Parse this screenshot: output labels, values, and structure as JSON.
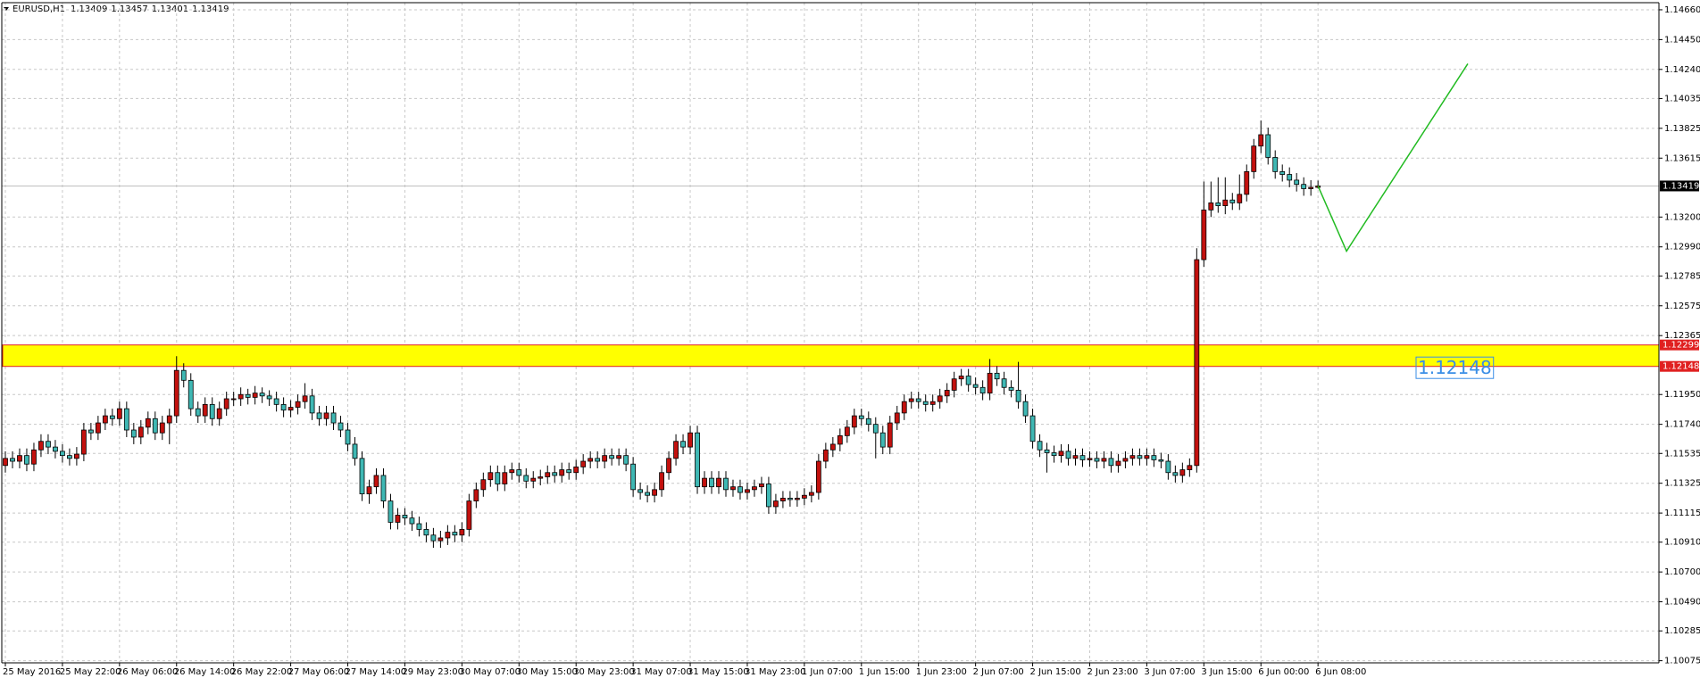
{
  "header": {
    "symbol": "EURUSD,H1"
  },
  "chart_data": {
    "type": "candlestick",
    "ylim": [
      1.1006,
      1.1471
    ],
    "yticks": [
      {
        "value": 1.1466,
        "label": "1.14660"
      },
      {
        "value": 1.1445,
        "label": "1.14450"
      },
      {
        "value": 1.1424,
        "label": "1.14240"
      },
      1.14035,
      1.13825,
      1.13615,
      {
        "value": 1.132,
        "label": "1.13200"
      },
      {
        "value": 1.1299,
        "label": "1.12990"
      },
      1.12785,
      1.12575,
      1.12365,
      {
        "value": 1.1195,
        "label": "1.11950"
      },
      {
        "value": 1.1174,
        "label": "1.11740"
      },
      1.11535,
      1.11325,
      1.11115,
      {
        "value": 1.1091,
        "label": "1.10910"
      },
      {
        "value": 1.107,
        "label": "1.10700"
      },
      {
        "value": 1.1049,
        "label": "1.10490"
      },
      1.10285,
      1.10075
    ],
    "grid": true,
    "bull_color": "#c3110e",
    "bear_color": "#3fb8b4",
    "categories": [
      "25 May 2016",
      null,
      null,
      null,
      null,
      null,
      null,
      null,
      "25 May 22:00",
      null,
      null,
      null,
      null,
      null,
      null,
      null,
      "26 May 06:00",
      null,
      null,
      null,
      null,
      null,
      null,
      null,
      "26 May 14:00",
      null,
      null,
      null,
      null,
      null,
      null,
      null,
      "26 May 22:00",
      null,
      null,
      null,
      null,
      null,
      null,
      null,
      "27 May 06:00",
      null,
      null,
      null,
      null,
      null,
      null,
      null,
      "27 May 14:00",
      null,
      null,
      null,
      null,
      null,
      null,
      null,
      "29 May 23:00",
      null,
      null,
      null,
      null,
      null,
      null,
      null,
      "30 May 07:00",
      null,
      null,
      null,
      null,
      null,
      null,
      null,
      "30 May 15:00",
      null,
      null,
      null,
      null,
      null,
      null,
      null,
      "30 May 23:00",
      null,
      null,
      null,
      null,
      null,
      null,
      null,
      "31 May 07:00",
      null,
      null,
      null,
      null,
      null,
      null,
      null,
      "31 May 15:00",
      null,
      null,
      null,
      null,
      null,
      null,
      null,
      "31 May 23:00",
      null,
      null,
      null,
      null,
      null,
      null,
      null,
      "1 Jun 07:00",
      null,
      null,
      null,
      null,
      null,
      null,
      null,
      "1 Jun 15:00",
      null,
      null,
      null,
      null,
      null,
      null,
      null,
      "1 Jun 23:00",
      null,
      null,
      null,
      null,
      null,
      null,
      null,
      "2 Jun 07:00",
      null,
      null,
      null,
      null,
      null,
      null,
      null,
      "2 Jun 15:00",
      null,
      null,
      null,
      null,
      null,
      null,
      null,
      "2 Jun 23:00",
      null,
      null,
      null,
      null,
      null,
      null,
      null,
      "3 Jun 07:00",
      null,
      null,
      null,
      null,
      null,
      null,
      null,
      "3 Jun 15:00",
      null,
      null,
      null,
      null,
      null,
      null,
      null,
      "6 Jun 00:00",
      null,
      null,
      null,
      null,
      null,
      null,
      null,
      "6 Jun 08:00"
    ],
    "ohlc": [
      [
        1.1145,
        1.1155,
        1.114,
        1.115
      ],
      [
        1.115,
        1.1155,
        1.1143,
        1.1148
      ],
      [
        1.1148,
        1.1157,
        1.1143,
        1.1152
      ],
      [
        1.1152,
        1.1157,
        1.1141,
        1.1146
      ],
      [
        1.1146,
        1.1161,
        1.1141,
        1.1156
      ],
      [
        1.1156,
        1.1167,
        1.1151,
        1.1162
      ],
      [
        1.1162,
        1.1167,
        1.1153,
        1.1158
      ],
      [
        1.1158,
        1.1163,
        1.115,
        1.1155
      ],
      [
        1.1155,
        1.116,
        1.1147,
        1.1152
      ],
      [
        1.1152,
        1.1157,
        1.1145,
        1.115
      ],
      [
        1.115,
        1.1158,
        1.1145,
        1.1153
      ],
      [
        1.1153,
        1.1175,
        1.1148,
        1.117
      ],
      [
        1.117,
        1.1175,
        1.1163,
        1.1168
      ],
      [
        1.1168,
        1.118,
        1.1163,
        1.1175
      ],
      [
        1.1175,
        1.1185,
        1.117,
        1.118
      ],
      [
        1.118,
        1.1185,
        1.1173,
        1.1178
      ],
      [
        1.1178,
        1.119,
        1.1173,
        1.1185
      ],
      [
        1.1185,
        1.119,
        1.1165,
        1.117
      ],
      [
        1.117,
        1.1175,
        1.116,
        1.1165
      ],
      [
        1.1165,
        1.1177,
        1.116,
        1.1172
      ],
      [
        1.1172,
        1.1183,
        1.1167,
        1.1178
      ],
      [
        1.1178,
        1.1183,
        1.1163,
        1.1168
      ],
      [
        1.1168,
        1.118,
        1.1163,
        1.1175
      ],
      [
        1.1175,
        1.1185,
        1.116,
        1.118
      ],
      [
        1.118,
        1.1222,
        1.1175,
        1.1212
      ],
      [
        1.1212,
        1.1217,
        1.12,
        1.1205
      ],
      [
        1.1205,
        1.121,
        1.118,
        1.1185
      ],
      [
        1.1185,
        1.119,
        1.1175,
        1.118
      ],
      [
        1.118,
        1.1193,
        1.1175,
        1.1188
      ],
      [
        1.1188,
        1.1193,
        1.1173,
        1.1178
      ],
      [
        1.1178,
        1.119,
        1.1173,
        1.1185
      ],
      [
        1.1185,
        1.1197,
        1.118,
        1.1192
      ],
      [
        1.1192,
        1.1197,
        1.1187,
        1.1192
      ],
      [
        1.1192,
        1.12,
        1.1187,
        1.1195
      ],
      [
        1.1195,
        1.1199,
        1.1188,
        1.1193
      ],
      [
        1.1193,
        1.1201,
        1.1188,
        1.1196
      ],
      [
        1.1196,
        1.12,
        1.1189,
        1.1194
      ],
      [
        1.1194,
        1.1198,
        1.1187,
        1.1192
      ],
      [
        1.1192,
        1.1197,
        1.1183,
        1.1188
      ],
      [
        1.1188,
        1.1193,
        1.1179,
        1.1184
      ],
      [
        1.1184,
        1.1191,
        1.1179,
        1.1186
      ],
      [
        1.1186,
        1.1195,
        1.1181,
        1.119
      ],
      [
        1.119,
        1.1203,
        1.1185,
        1.1194
      ],
      [
        1.1194,
        1.1199,
        1.1177,
        1.1182
      ],
      [
        1.1182,
        1.1187,
        1.1173,
        1.1178
      ],
      [
        1.1178,
        1.1187,
        1.1173,
        1.1182
      ],
      [
        1.1182,
        1.1187,
        1.117,
        1.1175
      ],
      [
        1.1175,
        1.118,
        1.1165,
        1.117
      ],
      [
        1.117,
        1.1175,
        1.1155,
        1.116
      ],
      [
        1.116,
        1.1165,
        1.1145,
        1.115
      ],
      [
        1.115,
        1.1155,
        1.112,
        1.1125
      ],
      [
        1.1125,
        1.1135,
        1.1118,
        1.113
      ],
      [
        1.113,
        1.1143,
        1.1125,
        1.1138
      ],
      [
        1.1138,
        1.1143,
        1.1115,
        1.112
      ],
      [
        1.112,
        1.1125,
        1.11,
        1.1105
      ],
      [
        1.1105,
        1.1115,
        1.11,
        1.111
      ],
      [
        1.111,
        1.1115,
        1.1103,
        1.1108
      ],
      [
        1.1108,
        1.1113,
        1.1099,
        1.1104
      ],
      [
        1.1104,
        1.1109,
        1.1095,
        1.11
      ],
      [
        1.11,
        1.1105,
        1.1091,
        1.1096
      ],
      [
        1.1096,
        1.1101,
        1.1087,
        1.1092
      ],
      [
        1.1092,
        1.1099,
        1.1087,
        1.1094
      ],
      [
        1.1094,
        1.1103,
        1.1089,
        1.1098
      ],
      [
        1.1098,
        1.1103,
        1.1091,
        1.1096
      ],
      [
        1.1096,
        1.1105,
        1.1091,
        1.11
      ],
      [
        1.11,
        1.1125,
        1.1095,
        1.112
      ],
      [
        1.112,
        1.1133,
        1.1115,
        1.1128
      ],
      [
        1.1128,
        1.114,
        1.1123,
        1.1135
      ],
      [
        1.1135,
        1.1145,
        1.113,
        1.114
      ],
      [
        1.114,
        1.1145,
        1.1127,
        1.1132
      ],
      [
        1.1132,
        1.1145,
        1.1127,
        1.114
      ],
      [
        1.114,
        1.1147,
        1.1135,
        1.1142
      ],
      [
        1.1142,
        1.1147,
        1.1133,
        1.1138
      ],
      [
        1.1138,
        1.1143,
        1.1129,
        1.1134
      ],
      [
        1.1134,
        1.1141,
        1.1129,
        1.1136
      ],
      [
        1.1136,
        1.1142,
        1.1131,
        1.1137
      ],
      [
        1.1137,
        1.1145,
        1.1132,
        1.114
      ],
      [
        1.114,
        1.1145,
        1.1133,
        1.1138
      ],
      [
        1.1138,
        1.1147,
        1.1133,
        1.1142
      ],
      [
        1.1142,
        1.1147,
        1.1135,
        1.114
      ],
      [
        1.114,
        1.1149,
        1.1135,
        1.1144
      ],
      [
        1.1144,
        1.1153,
        1.1139,
        1.1148
      ],
      [
        1.1148,
        1.1155,
        1.1143,
        1.115
      ],
      [
        1.115,
        1.1155,
        1.1143,
        1.1148
      ],
      [
        1.1148,
        1.1157,
        1.1143,
        1.1152
      ],
      [
        1.1152,
        1.1157,
        1.1145,
        1.115
      ],
      [
        1.115,
        1.1157,
        1.1145,
        1.1152
      ],
      [
        1.1152,
        1.1157,
        1.1141,
        1.1146
      ],
      [
        1.1146,
        1.1151,
        1.1123,
        1.1128
      ],
      [
        1.1128,
        1.1133,
        1.1121,
        1.1126
      ],
      [
        1.1126,
        1.1131,
        1.1119,
        1.1124
      ],
      [
        1.1124,
        1.1133,
        1.1119,
        1.1128
      ],
      [
        1.1128,
        1.1145,
        1.1123,
        1.114
      ],
      [
        1.114,
        1.1155,
        1.1135,
        1.115
      ],
      [
        1.115,
        1.1167,
        1.1145,
        1.1162
      ],
      [
        1.1162,
        1.1167,
        1.1153,
        1.1158
      ],
      [
        1.1158,
        1.1173,
        1.1153,
        1.1168
      ],
      [
        1.1168,
        1.1173,
        1.1125,
        1.113
      ],
      [
        1.113,
        1.1141,
        1.1125,
        1.1136
      ],
      [
        1.1136,
        1.1141,
        1.1125,
        1.113
      ],
      [
        1.113,
        1.1141,
        1.1125,
        1.1136
      ],
      [
        1.1136,
        1.1141,
        1.1123,
        1.1128
      ],
      [
        1.1128,
        1.1135,
        1.1123,
        1.113
      ],
      [
        1.113,
        1.1135,
        1.1121,
        1.1126
      ],
      [
        1.1126,
        1.1133,
        1.1121,
        1.1128
      ],
      [
        1.1128,
        1.1135,
        1.1123,
        1.113
      ],
      [
        1.113,
        1.1137,
        1.1125,
        1.1132
      ],
      [
        1.1132,
        1.1137,
        1.1111,
        1.1116
      ],
      [
        1.1116,
        1.1125,
        1.1111,
        1.112
      ],
      [
        1.112,
        1.1127,
        1.1115,
        1.1122
      ],
      [
        1.1122,
        1.1127,
        1.1116,
        1.1121
      ],
      [
        1.1121,
        1.1127,
        1.1116,
        1.1122
      ],
      [
        1.1122,
        1.1129,
        1.1117,
        1.1124
      ],
      [
        1.1124,
        1.1131,
        1.1119,
        1.1126
      ],
      [
        1.1126,
        1.1153,
        1.1121,
        1.1148
      ],
      [
        1.1148,
        1.1161,
        1.1143,
        1.1156
      ],
      [
        1.1156,
        1.1165,
        1.1151,
        1.116
      ],
      [
        1.116,
        1.1171,
        1.1155,
        1.1166
      ],
      [
        1.1166,
        1.1177,
        1.1161,
        1.1172
      ],
      [
        1.1172,
        1.1185,
        1.1167,
        1.118
      ],
      [
        1.118,
        1.1185,
        1.1173,
        1.1178
      ],
      [
        1.1178,
        1.1183,
        1.1169,
        1.1174
      ],
      [
        1.1174,
        1.1179,
        1.115,
        1.1168
      ],
      [
        1.1168,
        1.1173,
        1.1153,
        1.1158
      ],
      [
        1.1158,
        1.118,
        1.1153,
        1.1175
      ],
      [
        1.1175,
        1.1187,
        1.117,
        1.1182
      ],
      [
        1.1182,
        1.1195,
        1.1177,
        1.119
      ],
      [
        1.119,
        1.1197,
        1.1185,
        1.1192
      ],
      [
        1.1192,
        1.1197,
        1.1185,
        1.119
      ],
      [
        1.119,
        1.1195,
        1.1183,
        1.1188
      ],
      [
        1.1188,
        1.1195,
        1.1183,
        1.119
      ],
      [
        1.119,
        1.1199,
        1.1185,
        1.1194
      ],
      [
        1.1194,
        1.1203,
        1.1189,
        1.1198
      ],
      [
        1.1198,
        1.1211,
        1.1193,
        1.1206
      ],
      [
        1.1206,
        1.1213,
        1.1201,
        1.1208
      ],
      [
        1.1208,
        1.1213,
        1.1197,
        1.1202
      ],
      [
        1.1202,
        1.1207,
        1.1195,
        1.12
      ],
      [
        1.12,
        1.1205,
        1.1191,
        1.1196
      ],
      [
        1.1196,
        1.122,
        1.1191,
        1.121
      ],
      [
        1.121,
        1.1215,
        1.1201,
        1.1206
      ],
      [
        1.1206,
        1.1211,
        1.1195,
        1.12
      ],
      [
        1.12,
        1.1205,
        1.1193,
        1.1198
      ],
      [
        1.1198,
        1.1218,
        1.1185,
        1.119
      ],
      [
        1.119,
        1.1195,
        1.1175,
        1.118
      ],
      [
        1.118,
        1.1185,
        1.1157,
        1.1162
      ],
      [
        1.1162,
        1.1167,
        1.1151,
        1.1156
      ],
      [
        1.1156,
        1.1161,
        1.114,
        1.1154
      ],
      [
        1.1154,
        1.1159,
        1.1147,
        1.1152
      ],
      [
        1.1152,
        1.116,
        1.1147,
        1.1155
      ],
      [
        1.1155,
        1.116,
        1.1145,
        1.115
      ],
      [
        1.115,
        1.1157,
        1.1145,
        1.1152
      ],
      [
        1.1152,
        1.1157,
        1.1144,
        1.1149
      ],
      [
        1.1149,
        1.1155,
        1.1144,
        1.115
      ],
      [
        1.115,
        1.1155,
        1.1143,
        1.1148
      ],
      [
        1.1148,
        1.1155,
        1.1143,
        1.115
      ],
      [
        1.115,
        1.1155,
        1.114,
        1.1145
      ],
      [
        1.1145,
        1.1153,
        1.114,
        1.1148
      ],
      [
        1.1148,
        1.1155,
        1.1143,
        1.115
      ],
      [
        1.115,
        1.1157,
        1.1145,
        1.1152
      ],
      [
        1.1152,
        1.1157,
        1.1145,
        1.115
      ],
      [
        1.115,
        1.1157,
        1.1145,
        1.1152
      ],
      [
        1.1152,
        1.1157,
        1.1144,
        1.1149
      ],
      [
        1.1149,
        1.1154,
        1.1143,
        1.1148
      ],
      [
        1.1148,
        1.1153,
        1.1135,
        1.114
      ],
      [
        1.114,
        1.1145,
        1.1133,
        1.1138
      ],
      [
        1.1138,
        1.1147,
        1.1133,
        1.1142
      ],
      [
        1.1142,
        1.115,
        1.1137,
        1.1145
      ],
      [
        1.1145,
        1.1298,
        1.114,
        1.129
      ],
      [
        1.129,
        1.1345,
        1.1285,
        1.1325
      ],
      [
        1.1325,
        1.1345,
        1.132,
        1.133
      ],
      [
        1.133,
        1.1348,
        1.1323,
        1.1328
      ],
      [
        1.1328,
        1.1348,
        1.1322,
        1.1332
      ],
      [
        1.1332,
        1.1337,
        1.1325,
        1.133
      ],
      [
        1.133,
        1.135,
        1.1325,
        1.1336
      ],
      [
        1.1336,
        1.1357,
        1.1331,
        1.1352
      ],
      [
        1.1352,
        1.1375,
        1.1347,
        1.137
      ],
      [
        1.137,
        1.1388,
        1.1365,
        1.1378
      ],
      [
        1.1378,
        1.1383,
        1.1357,
        1.1362
      ],
      [
        1.1362,
        1.1367,
        1.1347,
        1.1352
      ],
      [
        1.1352,
        1.1357,
        1.1345,
        1.135
      ],
      [
        1.135,
        1.1355,
        1.1341,
        1.1346
      ],
      [
        1.1346,
        1.1351,
        1.1338,
        1.1343
      ],
      [
        1.1343,
        1.1348,
        1.1335,
        1.134
      ],
      [
        1.134,
        1.1346,
        1.1335,
        1.13409
      ],
      [
        1.13409,
        1.13457,
        1.13401,
        1.13419
      ]
    ],
    "zone": {
      "high": 1.12299,
      "low": 1.12148,
      "color": "#ffff00",
      "border": "#e02020"
    },
    "projection": {
      "color": "#22bb22",
      "x": [
        184,
        188,
        205
      ],
      "values": [
        1.13419,
        1.1296,
        1.1428
      ]
    }
  }
}
